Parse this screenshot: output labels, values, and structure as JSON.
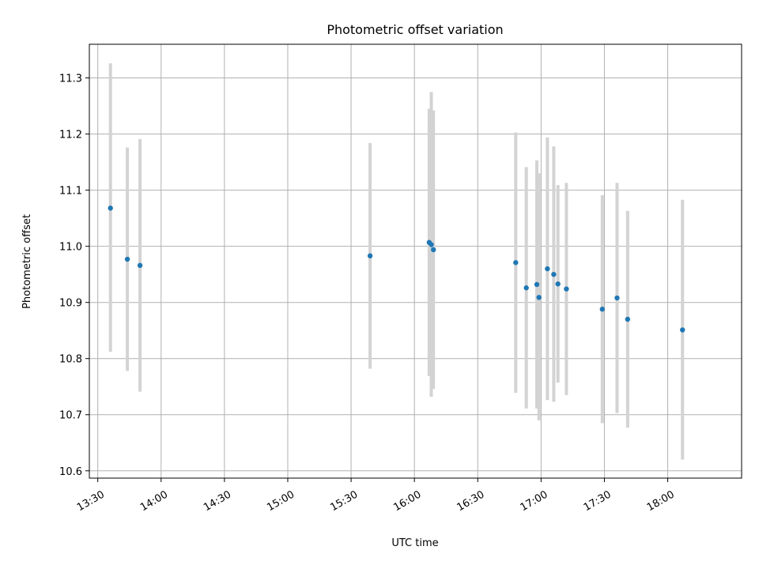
{
  "chart_data": {
    "type": "scatter",
    "title": "Photometric offset variation",
    "xlabel": "UTC time",
    "ylabel": "Photometric offset",
    "xlim": [
      "13:26",
      "18:35"
    ],
    "ylim": [
      10.587,
      11.36
    ],
    "x_ticks": [
      "13:30",
      "14:00",
      "14:30",
      "15:00",
      "15:30",
      "16:00",
      "16:30",
      "17:00",
      "17:30",
      "18:00"
    ],
    "y_ticks": [
      10.6,
      10.7,
      10.8,
      10.9,
      11.0,
      11.1,
      11.2,
      11.3
    ],
    "grid": true,
    "point_color": "#1f77b4",
    "errorbar_color": "#d3d3d3",
    "points": [
      {
        "x": "13:36",
        "y": 11.068,
        "err_low": 10.812,
        "err_high": 11.326
      },
      {
        "x": "13:44",
        "y": 10.977,
        "err_low": 10.778,
        "err_high": 11.176
      },
      {
        "x": "13:50",
        "y": 10.966,
        "err_low": 10.741,
        "err_high": 11.191
      },
      {
        "x": "15:39",
        "y": 10.983,
        "err_low": 10.782,
        "err_high": 11.184
      },
      {
        "x": "16:07",
        "y": 11.007,
        "err_low": 10.769,
        "err_high": 11.245
      },
      {
        "x": "16:08",
        "y": 11.003,
        "err_low": 10.732,
        "err_high": 11.275
      },
      {
        "x": "16:09",
        "y": 10.994,
        "err_low": 10.746,
        "err_high": 11.242
      },
      {
        "x": "16:48",
        "y": 10.971,
        "err_low": 10.739,
        "err_high": 11.203
      },
      {
        "x": "16:53",
        "y": 10.926,
        "err_low": 10.711,
        "err_high": 11.141
      },
      {
        "x": "16:58",
        "y": 10.932,
        "err_low": 10.711,
        "err_high": 11.153
      },
      {
        "x": "16:59",
        "y": 10.909,
        "err_low": 10.69,
        "err_high": 11.13
      },
      {
        "x": "17:03",
        "y": 10.96,
        "err_low": 10.726,
        "err_high": 11.194
      },
      {
        "x": "17:06",
        "y": 10.95,
        "err_low": 10.723,
        "err_high": 11.178
      },
      {
        "x": "17:08",
        "y": 10.933,
        "err_low": 10.757,
        "err_high": 11.109
      },
      {
        "x": "17:12",
        "y": 10.924,
        "err_low": 10.735,
        "err_high": 11.113
      },
      {
        "x": "17:29",
        "y": 10.888,
        "err_low": 10.685,
        "err_high": 11.091
      },
      {
        "x": "17:36",
        "y": 10.908,
        "err_low": 10.703,
        "err_high": 11.113
      },
      {
        "x": "17:41",
        "y": 10.87,
        "err_low": 10.677,
        "err_high": 11.063
      },
      {
        "x": "18:07",
        "y": 10.851,
        "err_low": 10.62,
        "err_high": 11.083
      }
    ]
  }
}
